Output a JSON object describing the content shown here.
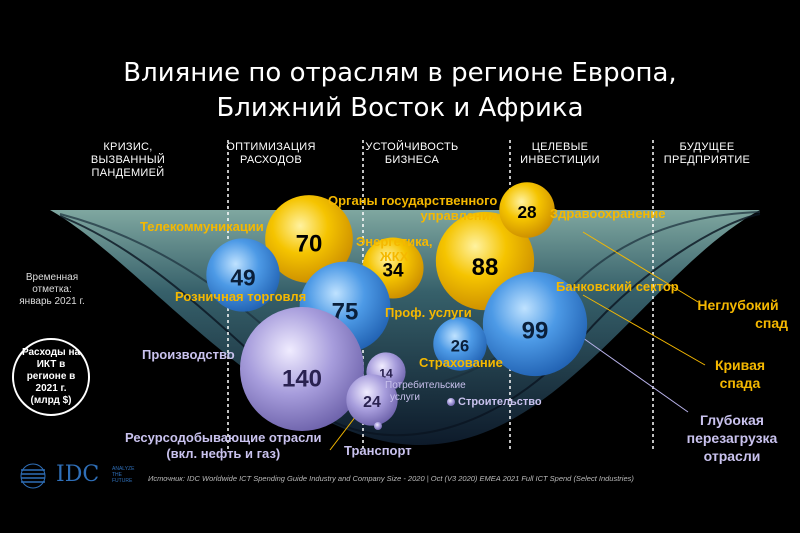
{
  "title_line1": "Влияние по отраслям в регионе Европа,",
  "title_line2": "Ближний Восток и Африка",
  "phases": [
    {
      "l1": "КРИЗИС,",
      "l2": "ВЫЗВАННЫЙ",
      "l3": "ПАНДЕМИЕЙ"
    },
    {
      "l1": "ОПТИМИЗАЦИЯ",
      "l2": "РАСХОДОВ",
      "l3": ""
    },
    {
      "l1": "УСТОЙЧИВОСТЬ",
      "l2": "БИЗНЕСА",
      "l3": ""
    },
    {
      "l1": "ЦЕЛЕВЫЕ",
      "l2": "ИНВЕСТИЦИИ",
      "l3": ""
    },
    {
      "l1": "БУДУЩЕЕ",
      "l2": "ПРЕДПРИЯТИЕ",
      "l3": ""
    }
  ],
  "note_l1": "Временная",
  "note_l2": "отметка:",
  "note_l3": "январь 2021 г.",
  "spend_l1": "Расходы на",
  "spend_l2": "ИКТ в",
  "spend_l3": "регионе в",
  "spend_l4": "2021 г.",
  "spend_l5": "(млрд $)",
  "labels": {
    "telecom": "Телекоммуникации",
    "gov_l1": "Органы государственного",
    "gov_l2": "управления",
    "health": "Здравоохранение",
    "energy_l1": "Энергетика,",
    "energy_l2": "ЖКХ",
    "retail": "Розничная торговля",
    "banking": "Банковский сектор",
    "prof": "Проф. услуги",
    "insurance": "Страхование",
    "manufacturing": "Производство",
    "consumer_l1": "Потребительские",
    "consumer_l2": "услуги",
    "construction": "Строительство",
    "resource_l1": "Ресурсодобывающие отрасли",
    "resource_l2": "(вкл. нефть и газ)",
    "transport": "Транспорт"
  },
  "scenarios": {
    "shallow_l1": "Неглубокий",
    "shallow_l2": "спад",
    "curve_l1": "Кривая",
    "curve_l2": "спада",
    "deep_l1": "Глубокая",
    "deep_l2": "перезагрузка",
    "deep_l3": "отрасли"
  },
  "source": "Источник: IDC Worldwide ICT Spending Guide Industry and Company Size - 2020 | Oct (V3 2020) EMEA  2021 Full ICT Spend (Select Industries)",
  "logo": {
    "name": "IDC",
    "tag_l1": "ANALYZE",
    "tag_l2": "THE",
    "tag_l3": "FUTURE"
  },
  "colors": {
    "gold": "#f5b800",
    "blue": "#3f8fe0",
    "lavender": "#9a8fd8",
    "background": "#000000"
  },
  "chart_data": {
    "type": "scatter",
    "unit": "млрд $",
    "points": [
      {
        "industry": "Телекоммуникации",
        "value": 70,
        "color": "gold"
      },
      {
        "industry": "Органы государственного управления",
        "value": 88,
        "color": "gold"
      },
      {
        "industry": "Здравоохранение",
        "value": 28,
        "color": "gold"
      },
      {
        "industry": "Энергетика, ЖКХ",
        "value": 34,
        "color": "gold"
      },
      {
        "industry": "Розничная торговля",
        "value": 49,
        "color": "blue"
      },
      {
        "industry": "Проф. услуги",
        "value": 75,
        "color": "blue"
      },
      {
        "industry": "Банковский сектор",
        "value": 99,
        "color": "blue"
      },
      {
        "industry": "Страхование",
        "value": 26,
        "color": "blue"
      },
      {
        "industry": "Производство",
        "value": 140,
        "color": "lavender"
      },
      {
        "industry": "Потребительские услуги",
        "value": 14,
        "color": "lavender"
      },
      {
        "industry": "Ресурсодобывающие отрасли",
        "value": 24,
        "color": "lavender"
      },
      {
        "industry": "Строительство",
        "value": null,
        "color": "lavender"
      },
      {
        "industry": "Транспорт",
        "value": null,
        "color": "lavender"
      }
    ]
  }
}
